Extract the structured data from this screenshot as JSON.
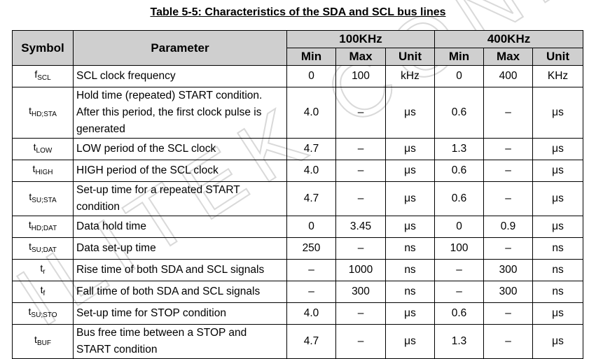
{
  "title": "Table 5-5: Characteristics of the SDA and SCL bus lines",
  "header": {
    "symbol": "Symbol",
    "parameter": "Parameter",
    "group_100": "100KHz",
    "group_400": "400KHz",
    "min": "Min",
    "max": "Max",
    "unit": "Unit"
  },
  "rows": [
    {
      "sym": "f",
      "sub": "SCL",
      "param": "SCL clock frequency",
      "min100": "0",
      "max100": "100",
      "unit100": "kHz",
      "min400": "0",
      "max400": "400",
      "unit400": "KHz",
      "lines": 1
    },
    {
      "sym": "t",
      "sub": "HD;STA",
      "param": "Hold time (repeated) START condition. After this period, the first clock pulse is generated",
      "min100": "4.0",
      "max100": "–",
      "unit100": "μs",
      "min400": "0.6",
      "max400": "–",
      "unit400": "μs",
      "lines": 3
    },
    {
      "sym": "t",
      "sub": "LOW",
      "param": "LOW period of the SCL clock",
      "min100": "4.7",
      "max100": "–",
      "unit100": "μs",
      "min400": "1.3",
      "max400": "–",
      "unit400": "μs",
      "lines": 1
    },
    {
      "sym": "t",
      "sub": "HIGH",
      "param": "HIGH period of the SCL clock",
      "min100": "4.0",
      "max100": "–",
      "unit100": "μs",
      "min400": "0.6",
      "max400": "–",
      "unit400": "μs",
      "lines": 1
    },
    {
      "sym": "t",
      "sub": "SU;STA",
      "param": "Set-up time for a repeated START condition",
      "min100": "4.7",
      "max100": "–",
      "unit100": "μs",
      "min400": "0.6",
      "max400": "–",
      "unit400": "μs",
      "lines": 2
    },
    {
      "sym": "t",
      "sub": "HD;DAT",
      "param": "Data hold time",
      "min100": "0",
      "max100": "3.45",
      "unit100": "μs",
      "min400": "0",
      "max400": "0.9",
      "unit400": "μs",
      "lines": 1
    },
    {
      "sym": "t",
      "sub": "SU;DAT",
      "param": "Data set-up time",
      "min100": "250",
      "max100": "–",
      "unit100": "ns",
      "min400": "100",
      "max400": "–",
      "unit400": "ns",
      "lines": 1
    },
    {
      "sym": "t",
      "sub": "r",
      "param": "Rise time of both SDA and SCL signals",
      "min100": "–",
      "max100": "1000",
      "unit100": "ns",
      "min400": "–",
      "max400": "300",
      "unit400": "ns",
      "lines": 1
    },
    {
      "sym": "t",
      "sub": "f",
      "param": "Fall time of both SDA and SCL signals",
      "min100": "–",
      "max100": "300",
      "unit100": "ns",
      "min400": "–",
      "max400": "300",
      "unit400": "ns",
      "lines": 1
    },
    {
      "sym": "t",
      "sub": "SU;STO",
      "param": "Set-up time for STOP condition",
      "min100": "4.0",
      "max100": "–",
      "unit100": "μs",
      "min400": "0.6",
      "max400": "–",
      "unit400": "μs",
      "lines": 1
    },
    {
      "sym": "t",
      "sub": "BUF",
      "param": "Bus free time between a STOP and START condition",
      "min100": "4.7",
      "max100": "–",
      "unit100": "μs",
      "min400": "1.3",
      "max400": "–",
      "unit400": "μs",
      "lines": 2
    }
  ],
  "colors": {
    "header_bg": "#cfcfcf",
    "watermark": "#d9d9d9"
  }
}
